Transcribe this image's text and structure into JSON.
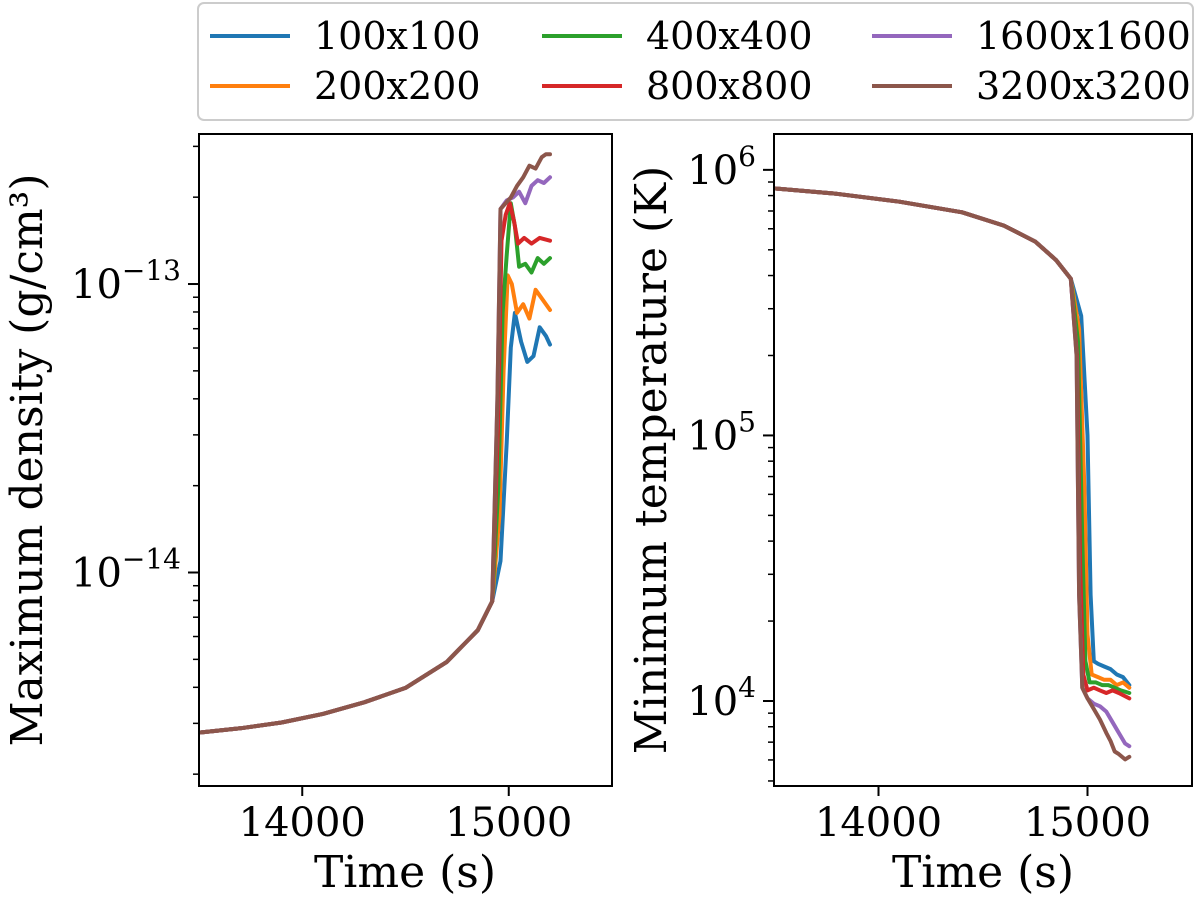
{
  "chart_data": {
    "type": "line",
    "legend": {
      "position": "top-center",
      "entries": [
        "100x100",
        "200x200",
        "400x400",
        "800x800",
        "1600x1600",
        "3200x3200"
      ]
    },
    "colors": {
      "100x100": "#1f77b4",
      "200x200": "#ff7f0e",
      "400x400": "#2ca02c",
      "800x800": "#d62728",
      "1600x1600": "#9467bd",
      "3200x3200": "#8c564b"
    },
    "panels": [
      {
        "id": "left",
        "xlabel": "Time (s)",
        "ylabel": "Maximum density (g/cm³)",
        "yscale": "log",
        "xlim": [
          13500,
          15500
        ],
        "ylim_log10": [
          -14.74,
          -12.48
        ],
        "xticks": [
          14000,
          15000
        ],
        "xtick_labels": [
          "14000",
          "15000"
        ],
        "yticks_log10": [
          -14,
          -13
        ],
        "ytick_base": "10",
        "ytick_exponents": [
          "−14",
          "−13"
        ],
        "series": [
          {
            "name": "100x100",
            "x": [
              13500,
              13700,
              13900,
              14100,
              14300,
              14500,
              14700,
              14850,
              14920,
              14960,
              14990,
              15010,
              15030,
              15060,
              15090,
              15120,
              15150,
              15180,
              15200
            ],
            "log10y": [
              -14.555,
              -14.54,
              -14.52,
              -14.49,
              -14.45,
              -14.4,
              -14.31,
              -14.2,
              -14.1,
              -13.96,
              -13.55,
              -13.22,
              -13.1,
              -13.2,
              -13.27,
              -13.25,
              -13.15,
              -13.18,
              -13.21
            ]
          },
          {
            "name": "200x200",
            "x": [
              13500,
              13700,
              13900,
              14100,
              14300,
              14500,
              14700,
              14850,
              14920,
              14955,
              14975,
              14995,
              15015,
              15040,
              15070,
              15100,
              15130,
              15160,
              15200
            ],
            "log10y": [
              -14.555,
              -14.54,
              -14.52,
              -14.49,
              -14.45,
              -14.4,
              -14.31,
              -14.2,
              -14.1,
              -13.8,
              -13.3,
              -12.97,
              -13.0,
              -13.1,
              -13.07,
              -13.12,
              -13.02,
              -13.05,
              -13.09
            ]
          },
          {
            "name": "400x400",
            "x": [
              13500,
              13700,
              13900,
              14100,
              14300,
              14500,
              14700,
              14850,
              14920,
              14950,
              14970,
              14990,
              15010,
              15030,
              15050,
              15080,
              15110,
              15140,
              15170,
              15200
            ],
            "log10y": [
              -14.555,
              -14.54,
              -14.52,
              -14.49,
              -14.45,
              -14.4,
              -14.31,
              -14.2,
              -14.1,
              -13.7,
              -13.1,
              -12.9,
              -12.72,
              -12.8,
              -12.94,
              -12.93,
              -12.96,
              -12.91,
              -12.93,
              -12.91
            ]
          },
          {
            "name": "800x800",
            "x": [
              13500,
              13700,
              13900,
              14100,
              14300,
              14500,
              14700,
              14850,
              14920,
              14948,
              14965,
              14985,
              15005,
              15025,
              15045,
              15075,
              15110,
              15150,
              15200
            ],
            "log10y": [
              -14.555,
              -14.54,
              -14.52,
              -14.49,
              -14.45,
              -14.4,
              -14.31,
              -14.2,
              -14.1,
              -13.5,
              -12.85,
              -12.76,
              -12.72,
              -12.78,
              -12.86,
              -12.84,
              -12.86,
              -12.84,
              -12.85
            ]
          },
          {
            "name": "1600x1600",
            "x": [
              13500,
              13700,
              13900,
              14100,
              14300,
              14500,
              14700,
              14850,
              14920,
              14945,
              14960,
              14990,
              15020,
              15050,
              15080,
              15110,
              15140,
              15170,
              15200
            ],
            "log10y": [
              -14.555,
              -14.54,
              -14.52,
              -14.49,
              -14.45,
              -14.4,
              -14.31,
              -14.2,
              -14.1,
              -13.4,
              -12.74,
              -12.71,
              -12.7,
              -12.68,
              -12.72,
              -12.66,
              -12.64,
              -12.65,
              -12.63
            ]
          },
          {
            "name": "3200x3200",
            "x": [
              13500,
              13700,
              13900,
              14100,
              14300,
              14500,
              14700,
              14850,
              14920,
              14945,
              14960,
              14985,
              15010,
              15040,
              15070,
              15100,
              15130,
              15160,
              15180,
              15200
            ],
            "log10y": [
              -14.555,
              -14.54,
              -14.52,
              -14.49,
              -14.45,
              -14.4,
              -14.31,
              -14.2,
              -14.1,
              -13.4,
              -12.74,
              -12.72,
              -12.7,
              -12.66,
              -12.63,
              -12.59,
              -12.6,
              -12.56,
              -12.55,
              -12.55
            ]
          }
        ]
      },
      {
        "id": "right",
        "xlabel": "Time (s)",
        "ylabel": "Minimum temperature (K)",
        "yscale": "log",
        "xlim": [
          13500,
          15500
        ],
        "ylim_log10": [
          3.68,
          6.135
        ],
        "xticks": [
          14000,
          15000
        ],
        "xtick_labels": [
          "14000",
          "15000"
        ],
        "yticks_log10": [
          4,
          5,
          6
        ],
        "ytick_base": "10",
        "ytick_exponents": [
          "4",
          "5",
          "6"
        ],
        "series": [
          {
            "name": "100x100",
            "x": [
              13500,
              13800,
              14100,
              14400,
              14600,
              14750,
              14850,
              14920,
              14970,
              15000,
              15015,
              15030,
              15050,
              15080,
              15110,
              15140,
              15170,
              15200
            ],
            "log10y": [
              5.93,
              5.91,
              5.88,
              5.84,
              5.79,
              5.73,
              5.66,
              5.59,
              5.45,
              5.0,
              4.4,
              4.15,
              4.14,
              4.13,
              4.12,
              4.1,
              4.09,
              4.06
            ]
          },
          {
            "name": "200x200",
            "x": [
              13500,
              13800,
              14100,
              14400,
              14600,
              14750,
              14850,
              14920,
              14960,
              14985,
              15000,
              15020,
              15050,
              15080,
              15110,
              15140,
              15170,
              15200
            ],
            "log10y": [
              5.93,
              5.91,
              5.88,
              5.84,
              5.79,
              5.73,
              5.66,
              5.59,
              5.4,
              4.8,
              4.25,
              4.1,
              4.09,
              4.08,
              4.08,
              4.06,
              4.07,
              4.05
            ]
          },
          {
            "name": "400x400",
            "x": [
              13500,
              13800,
              14100,
              14400,
              14600,
              14750,
              14850,
              14920,
              14955,
              14975,
              14990,
              15010,
              15040,
              15070,
              15100,
              15130,
              15160,
              15200
            ],
            "log10y": [
              5.93,
              5.91,
              5.88,
              5.84,
              5.79,
              5.73,
              5.66,
              5.59,
              5.35,
              4.6,
              4.15,
              4.07,
              4.07,
              4.06,
              4.06,
              4.05,
              4.04,
              4.03
            ]
          },
          {
            "name": "800x800",
            "x": [
              13500,
              13800,
              14100,
              14400,
              14600,
              14750,
              14850,
              14920,
              14950,
              14965,
              14980,
              15000,
              15030,
              15060,
              15090,
              15120,
              15150,
              15200
            ],
            "log10y": [
              5.93,
              5.91,
              5.88,
              5.84,
              5.79,
              5.73,
              5.66,
              5.59,
              5.3,
              4.5,
              4.1,
              4.04,
              4.05,
              4.04,
              4.03,
              4.04,
              4.03,
              4.01
            ]
          },
          {
            "name": "1600x1600",
            "x": [
              13500,
              13800,
              14100,
              14400,
              14600,
              14750,
              14850,
              14920,
              14948,
              14960,
              14975,
              15000,
              15030,
              15060,
              15090,
              15120,
              15150,
              15180,
              15200
            ],
            "log10y": [
              5.93,
              5.91,
              5.88,
              5.84,
              5.79,
              5.73,
              5.66,
              5.59,
              5.3,
              4.4,
              4.05,
              4.01,
              3.99,
              3.98,
              3.96,
              3.92,
              3.88,
              3.84,
              3.83
            ]
          },
          {
            "name": "3200x3200",
            "x": [
              13500,
              13800,
              14100,
              14400,
              14600,
              14750,
              14850,
              14920,
              14948,
              14960,
              14975,
              15000,
              15030,
              15060,
              15090,
              15110,
              15130,
              15150,
              15180,
              15200
            ],
            "log10y": [
              5.93,
              5.91,
              5.88,
              5.84,
              5.79,
              5.73,
              5.66,
              5.59,
              5.3,
              4.4,
              4.05,
              4.01,
              3.97,
              3.93,
              3.88,
              3.85,
              3.81,
              3.8,
              3.78,
              3.79
            ]
          }
        ]
      }
    ]
  }
}
